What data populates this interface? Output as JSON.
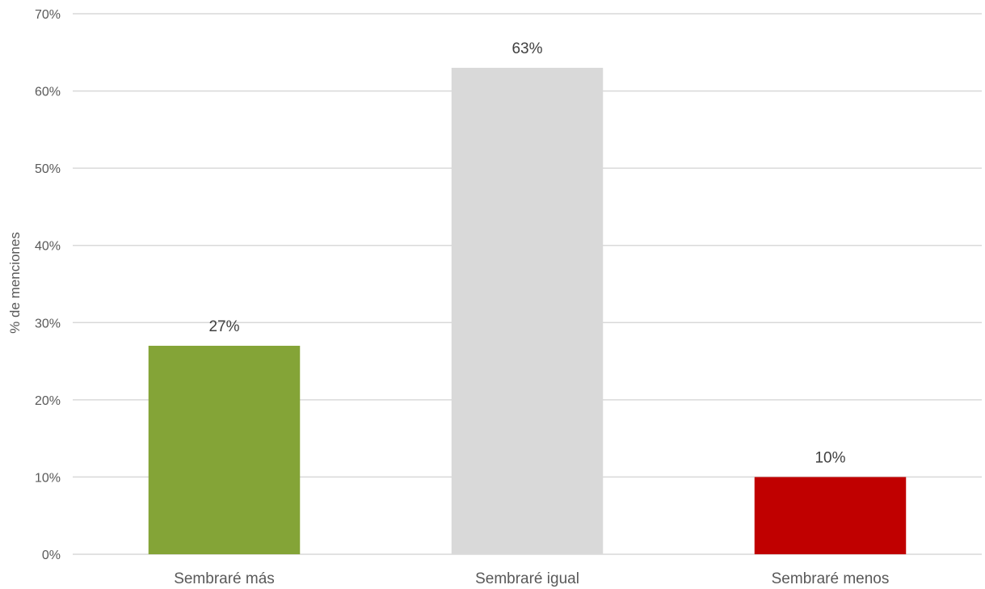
{
  "chart_data": {
    "type": "bar",
    "title": "",
    "xlabel": "",
    "ylabel": "% de menciones",
    "ylim": [
      0,
      70
    ],
    "yticks": [
      "0%",
      "10%",
      "20%",
      "30%",
      "40%",
      "50%",
      "60%",
      "70%"
    ],
    "ytick_values": [
      0,
      10,
      20,
      30,
      40,
      50,
      60,
      70
    ],
    "grid": true,
    "legend": "none",
    "categories": [
      "Sembraré más",
      "Sembraré igual",
      "Sembraré menos"
    ],
    "values": [
      27,
      63,
      10
    ],
    "data_labels": [
      "27%",
      "63%",
      "10%"
    ],
    "colors": [
      "#84A437",
      "#D9D9D9",
      "#C00000"
    ]
  }
}
